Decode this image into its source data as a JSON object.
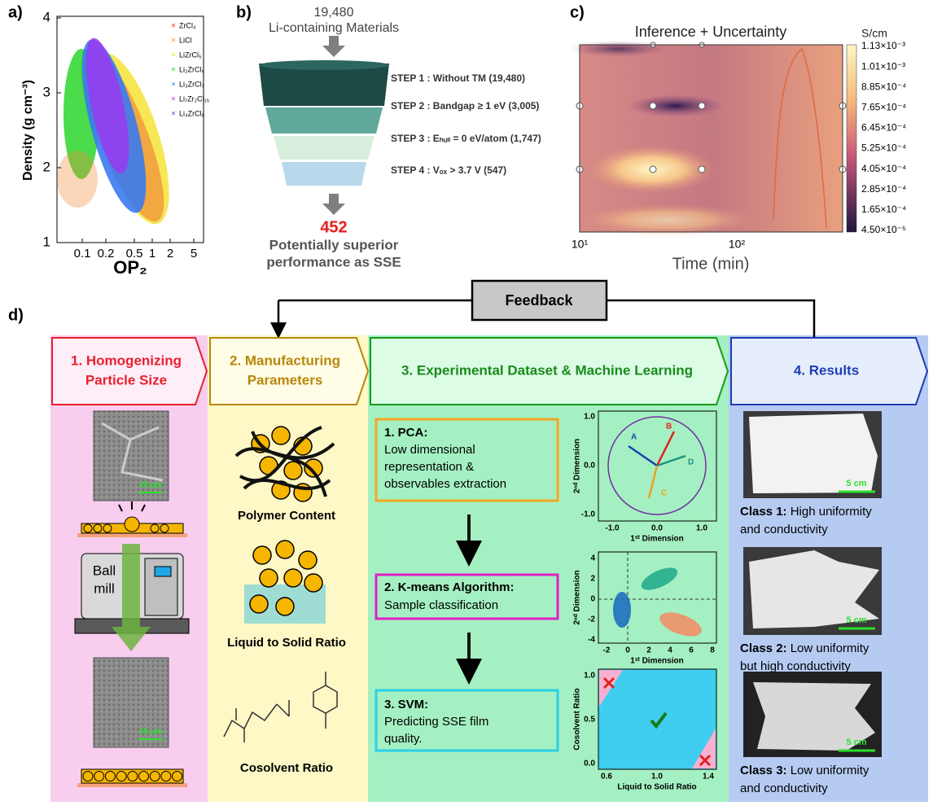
{
  "panel_a": {
    "label": "a)",
    "y_axis_label": "Density (g cm⁻³)",
    "x_axis_label": "OP₂",
    "yticks": [
      "1",
      "2",
      "3",
      "4"
    ],
    "xticks": [
      "0.1",
      "0.2",
      "0.5",
      "1",
      "2",
      "5"
    ],
    "legend": [
      {
        "name": "ZrCl₄",
        "color": "#e8301c"
      },
      {
        "name": "LiCl",
        "color": "#f08a3c"
      },
      {
        "name": "LiZrCl₅",
        "color": "#f5e12a"
      },
      {
        "name": "Li₂ZrCl₆",
        "color": "#2ad62a"
      },
      {
        "name": "Li₃ZrCl₇",
        "color": "#3a7af0"
      },
      {
        "name": "Li₇Zr₂Cl₁₅",
        "color": "#b23af0"
      },
      {
        "name": "Li₄ZrCl₈",
        "color": "#7a3ad8"
      }
    ]
  },
  "panel_b": {
    "label": "b)",
    "top_count": "19,480",
    "top_text": "Li-containing Materials",
    "steps": [
      "STEP 1 : Without TM (19,480)",
      "STEP 2 : Bandgap ≥ 1 eV (3,005)",
      "STEP 3 : Eₕᵤₗₗ = 0 eV/atom (1,747)",
      "STEP 4 : Vₒₓ > 3.7 V (547)"
    ],
    "result_count": "452",
    "result_lines": [
      "Potentially superior",
      "performance as SSE"
    ]
  },
  "panel_c": {
    "label": "c)",
    "title": "Inference + Uncertainty",
    "colorbar_unit": "S/cm",
    "colorbar_ticks": [
      "1.13×10⁻³",
      "1.01×10⁻³",
      "8.85×10⁻⁴",
      "7.65×10⁻⁴",
      "6.45×10⁻⁴",
      "5.25×10⁻⁴",
      "4.05×10⁻⁴",
      "2.85×10⁻⁴",
      "1.65×10⁻⁴",
      "4.50×10⁻⁵"
    ],
    "xticks": [
      "10¹",
      "10²"
    ],
    "x_axis_label": "Time (min)"
  },
  "panel_d": {
    "label": "d)",
    "feedback": "Feedback",
    "col1": {
      "title_lines": [
        "1. Homogenizing",
        "Particle Size"
      ],
      "scale": "20 µm",
      "mill_lines": [
        "Ball",
        "mill"
      ]
    },
    "col2": {
      "title_lines": [
        "2. Manufacturing",
        "Parameters"
      ],
      "items": [
        "Polymer Content",
        "Liquid to Solid Ratio",
        "Cosolvent Ratio"
      ]
    },
    "col3": {
      "title": "3. Experimental Dataset & Machine Learning",
      "boxes": [
        {
          "heading": "1. PCA:",
          "lines": [
            "Low dimensional",
            "representation &",
            "observables extraction"
          ]
        },
        {
          "heading": "2. K-means Algorithm:",
          "lines": [
            "Sample classification"
          ]
        },
        {
          "heading": "3. SVM:",
          "lines": [
            "Predicting SSE film",
            "quality."
          ]
        }
      ],
      "pca": {
        "yticks": [
          "1.0",
          "0.0",
          "-1.0"
        ],
        "xticks": [
          "-1.0",
          "0.0",
          "1.0"
        ],
        "y_label": "2ⁿᵈ Dimension",
        "x_label": "1ˢᵗ Dimension",
        "vectors": [
          "A",
          "B",
          "C",
          "D"
        ]
      },
      "kmeans": {
        "yticks": [
          "4",
          "2",
          "0",
          "-2",
          "-4"
        ],
        "xticks": [
          "-2",
          "0",
          "2",
          "4",
          "6",
          "8"
        ],
        "y_label": "2ⁿᵈ Dimension",
        "x_label": "1ˢᵗ Dimension"
      },
      "svm": {
        "yticks": [
          "1.0",
          "0.5",
          "0.0"
        ],
        "xticks": [
          "0.6",
          "1.0",
          "1.4"
        ],
        "y_label": "Cosolvent Ratio",
        "x_label": "Liquid to Solid Ratio"
      }
    },
    "col4": {
      "title": "4. Results",
      "scale": "5 cm",
      "classes": [
        {
          "name": "Class 1:",
          "lines": [
            " High uniformity",
            "and conductivity"
          ]
        },
        {
          "name": "Class 2:",
          "lines": [
            " Low uniformity",
            "but high conductivity"
          ]
        },
        {
          "name": "Class 3:",
          "lines": [
            " Low uniformity",
            "and conductivity"
          ]
        }
      ]
    }
  }
}
